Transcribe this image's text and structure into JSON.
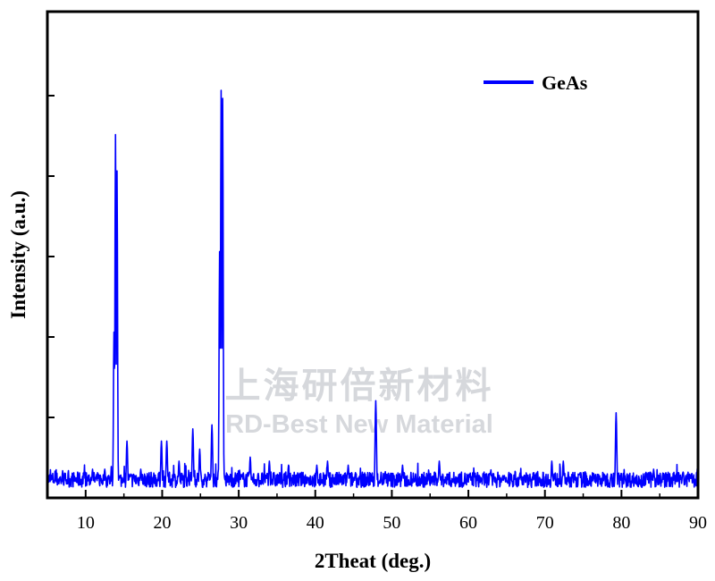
{
  "chart_data": {
    "type": "line",
    "title": "",
    "xlabel": "2Theat (deg.)",
    "ylabel": "Intensity (a.u.)",
    "xlim": [
      5,
      90
    ],
    "ylim": [
      0,
      100
    ],
    "xticks": [
      10,
      20,
      30,
      40,
      50,
      60,
      70,
      80,
      90
    ],
    "grid": false,
    "legend": {
      "placement": "top-right",
      "entries": [
        "GeAs"
      ]
    },
    "series": [
      {
        "name": "GeAs",
        "color": "#0000ff",
        "peaks": [
          {
            "x": 10.9,
            "y": 6
          },
          {
            "x": 12.5,
            "y": 6
          },
          {
            "x": 13.7,
            "y": 40
          },
          {
            "x": 13.9,
            "y": 89
          },
          {
            "x": 14.1,
            "y": 80
          },
          {
            "x": 15.4,
            "y": 13
          },
          {
            "x": 17.2,
            "y": 6
          },
          {
            "x": 19.9,
            "y": 13
          },
          {
            "x": 20.6,
            "y": 13
          },
          {
            "x": 22.2,
            "y": 8
          },
          {
            "x": 24.0,
            "y": 16
          },
          {
            "x": 24.9,
            "y": 11
          },
          {
            "x": 26.5,
            "y": 17
          },
          {
            "x": 27.5,
            "y": 60
          },
          {
            "x": 27.7,
            "y": 100
          },
          {
            "x": 27.9,
            "y": 98
          },
          {
            "x": 31.5,
            "y": 9
          },
          {
            "x": 34.0,
            "y": 8
          },
          {
            "x": 36.5,
            "y": 7
          },
          {
            "x": 40.2,
            "y": 7
          },
          {
            "x": 41.6,
            "y": 8
          },
          {
            "x": 44.3,
            "y": 7
          },
          {
            "x": 47.9,
            "y": 23
          },
          {
            "x": 51.4,
            "y": 7
          },
          {
            "x": 56.2,
            "y": 8
          },
          {
            "x": 61.2,
            "y": 5
          },
          {
            "x": 70.9,
            "y": 8
          },
          {
            "x": 72.4,
            "y": 8
          },
          {
            "x": 79.3,
            "y": 20
          },
          {
            "x": 84.2,
            "y": 6
          },
          {
            "x": 88.0,
            "y": 5
          }
        ]
      }
    ]
  },
  "watermark": {
    "line1": "上海研倍新材料",
    "line2": "RD-Best New Material"
  }
}
